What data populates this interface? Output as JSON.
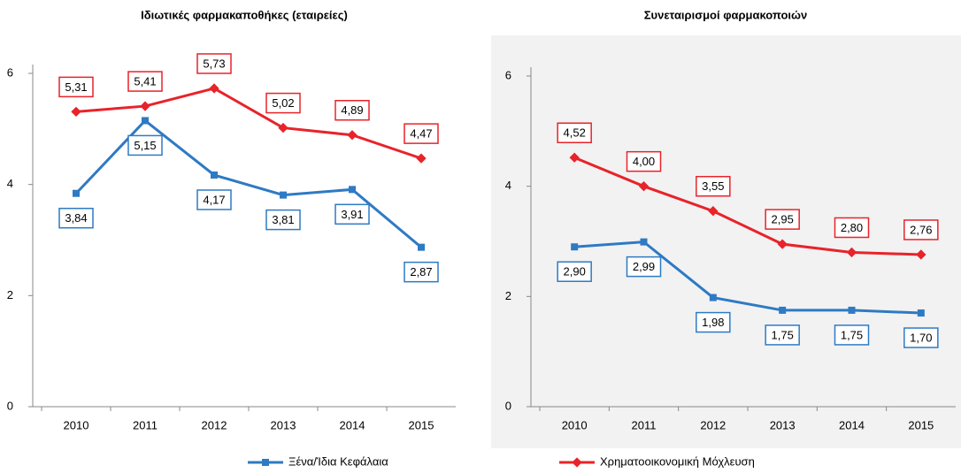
{
  "chart_data": [
    {
      "type": "line",
      "title": "Ιδιωτικές φαρμακαποθήκες (εταιρείες)",
      "categories": [
        "2010",
        "2011",
        "2012",
        "2013",
        "2014",
        "2015"
      ],
      "ylim": [
        0,
        6
      ],
      "yticks": [
        0,
        2,
        4,
        6
      ],
      "background": "#ffffff",
      "series": [
        {
          "name": "Ξένα/Ίδια Κεφάλαια",
          "color": "#2e7ac4",
          "marker": "square",
          "values": [
            3.84,
            5.15,
            4.17,
            3.81,
            3.91,
            2.87
          ],
          "value_labels": [
            "3,84",
            "5,15",
            "4,17",
            "3,81",
            "3,91",
            "2,87"
          ]
        },
        {
          "name": "Χρηματοοικονομική Μόχλευση",
          "color": "#e8232a",
          "marker": "diamond",
          "values": [
            5.31,
            5.41,
            5.73,
            5.02,
            4.89,
            4.47
          ],
          "value_labels": [
            "5,31",
            "5,41",
            "5,73",
            "5,02",
            "4,89",
            "4,47"
          ]
        }
      ]
    },
    {
      "type": "line",
      "title": "Συνεταιρισμοί φαρμακοποιών",
      "categories": [
        "2010",
        "2011",
        "2012",
        "2013",
        "2014",
        "2015"
      ],
      "ylim": [
        0,
        6
      ],
      "yticks": [
        0,
        2,
        4,
        6
      ],
      "background": "#f2f2f2",
      "series": [
        {
          "color": "#2e7ac4",
          "marker": "square",
          "values": [
            2.9,
            2.99,
            1.98,
            1.75,
            1.75,
            1.7
          ],
          "value_labels": [
            "2,90",
            "2,99",
            "1,98",
            "1,75",
            "1,75",
            "1,70"
          ]
        },
        {
          "color": "#e8232a",
          "marker": "diamond",
          "values": [
            4.52,
            4.0,
            3.55,
            2.95,
            2.8,
            2.76
          ],
          "value_labels": [
            "4,52",
            "4,00",
            "3,55",
            "2,95",
            "2,80",
            "2,76"
          ]
        }
      ]
    }
  ]
}
